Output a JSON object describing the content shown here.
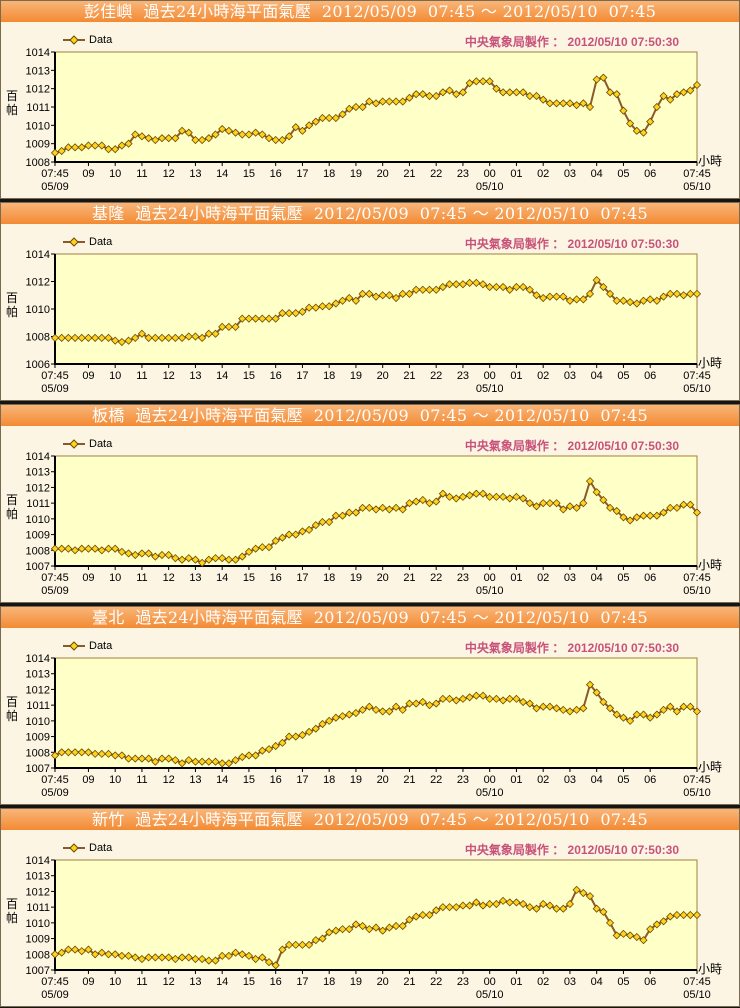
{
  "credit": "中央氣象局製作 ： 2012/05/10 07:50:30",
  "legend_label": "Data",
  "y_unit": "百帕",
  "x_unit": "小時",
  "colors": {
    "header": "#f38a33",
    "plot_bg": "#ffffc8",
    "line": "#8b5a2b",
    "marker": "#ffd21e",
    "credit": "#c8527a"
  },
  "chart_data": [
    {
      "type": "line",
      "title": "彭佳嶼  過去24小時海平面氣壓  2012/05/09  07:45 ～ 2012/05/10  07:45",
      "ylabel": "百帕",
      "xlabel": "小時",
      "ylim": [
        1008,
        1014
      ],
      "yticks": [
        1008,
        1009,
        1010,
        1011,
        1012,
        1013,
        1014
      ],
      "series": [
        {
          "name": "Data",
          "values": [
            1008.5,
            1008.6,
            1008.8,
            1008.8,
            1008.8,
            1008.9,
            1008.9,
            1008.9,
            1008.7,
            1008.7,
            1008.9,
            1009.0,
            1009.5,
            1009.4,
            1009.3,
            1009.2,
            1009.3,
            1009.3,
            1009.3,
            1009.7,
            1009.6,
            1009.2,
            1009.2,
            1009.3,
            1009.5,
            1009.8,
            1009.7,
            1009.6,
            1009.5,
            1009.5,
            1009.6,
            1009.5,
            1009.3,
            1009.2,
            1009.2,
            1009.4,
            1009.9,
            1009.7,
            1010.0,
            1010.2,
            1010.4,
            1010.4,
            1010.4,
            1010.6,
            1010.9,
            1011.0,
            1011.0,
            1011.3,
            1011.2,
            1011.3,
            1011.3,
            1011.3,
            1011.3,
            1011.5,
            1011.7,
            1011.7,
            1011.6,
            1011.6,
            1011.8,
            1011.9,
            1011.7,
            1011.8,
            1012.3,
            1012.4,
            1012.4,
            1012.4,
            1012.0,
            1011.8,
            1011.8,
            1011.8,
            1011.8,
            1011.6,
            1011.6,
            1011.4,
            1011.2,
            1011.2,
            1011.2,
            1011.2,
            1011.1,
            1011.2,
            1011.0,
            1012.5,
            1012.6,
            1011.8,
            1011.7,
            1010.8,
            1010.1,
            1009.7,
            1009.6,
            1010.2,
            1011.0,
            1011.6,
            1011.4,
            1011.7,
            1011.8,
            1011.9,
            1012.2
          ]
        }
      ]
    },
    {
      "type": "line",
      "title": "基隆  過去24小時海平面氣壓  2012/05/09  07:45 ～ 2012/05/10  07:45",
      "ylabel": "百帕",
      "xlabel": "小時",
      "ylim": [
        1006,
        1014
      ],
      "yticks": [
        1006,
        1008,
        1010,
        1012,
        1014
      ],
      "series": [
        {
          "name": "Data",
          "values": [
            1007.9,
            1007.9,
            1007.9,
            1007.9,
            1007.9,
            1007.9,
            1007.9,
            1007.9,
            1007.9,
            1007.7,
            1007.6,
            1007.7,
            1007.9,
            1008.2,
            1007.9,
            1007.9,
            1007.9,
            1007.9,
            1007.9,
            1007.9,
            1008.0,
            1008.0,
            1007.9,
            1008.2,
            1008.2,
            1008.7,
            1008.7,
            1008.7,
            1009.3,
            1009.3,
            1009.3,
            1009.3,
            1009.3,
            1009.3,
            1009.7,
            1009.7,
            1009.7,
            1009.8,
            1010.1,
            1010.1,
            1010.2,
            1010.2,
            1010.4,
            1010.6,
            1010.8,
            1010.6,
            1011.1,
            1011.1,
            1010.9,
            1011.0,
            1011.0,
            1010.8,
            1011.1,
            1011.1,
            1011.4,
            1011.4,
            1011.4,
            1011.4,
            1011.6,
            1011.8,
            1011.8,
            1011.8,
            1011.9,
            1011.9,
            1011.8,
            1011.6,
            1011.6,
            1011.6,
            1011.4,
            1011.6,
            1011.6,
            1011.4,
            1011.0,
            1010.8,
            1010.9,
            1010.9,
            1010.9,
            1010.6,
            1010.7,
            1010.7,
            1011.1,
            1012.1,
            1011.6,
            1011.1,
            1010.6,
            1010.6,
            1010.5,
            1010.4,
            1010.6,
            1010.7,
            1010.6,
            1010.9,
            1011.1,
            1011.1,
            1011.0,
            1011.1,
            1011.1
          ]
        }
      ]
    },
    {
      "type": "line",
      "title": "板橋  過去24小時海平面氣壓  2012/05/09  07:45 ～ 2012/05/10  07:45",
      "ylabel": "百帕",
      "xlabel": "小時",
      "ylim": [
        1007,
        1014
      ],
      "yticks": [
        1007,
        1008,
        1009,
        1010,
        1011,
        1012,
        1013,
        1014
      ],
      "series": [
        {
          "name": "Data",
          "values": [
            1008.1,
            1008.1,
            1008.1,
            1008.0,
            1008.1,
            1008.1,
            1008.1,
            1008.0,
            1008.1,
            1008.1,
            1007.9,
            1007.8,
            1007.7,
            1007.8,
            1007.8,
            1007.6,
            1007.7,
            1007.7,
            1007.5,
            1007.4,
            1007.5,
            1007.4,
            1007.2,
            1007.4,
            1007.5,
            1007.5,
            1007.4,
            1007.4,
            1007.6,
            1007.9,
            1008.1,
            1008.2,
            1008.2,
            1008.6,
            1008.8,
            1009.0,
            1009.0,
            1009.2,
            1009.3,
            1009.6,
            1009.8,
            1009.8,
            1010.2,
            1010.2,
            1010.4,
            1010.4,
            1010.7,
            1010.7,
            1010.6,
            1010.7,
            1010.6,
            1010.7,
            1010.6,
            1011.0,
            1011.1,
            1011.2,
            1011.0,
            1011.1,
            1011.6,
            1011.4,
            1011.3,
            1011.4,
            1011.5,
            1011.6,
            1011.6,
            1011.4,
            1011.4,
            1011.4,
            1011.3,
            1011.4,
            1011.3,
            1011.0,
            1010.8,
            1011.0,
            1011.0,
            1011.0,
            1010.6,
            1010.8,
            1010.7,
            1011.0,
            1012.4,
            1011.7,
            1011.2,
            1010.7,
            1010.5,
            1010.1,
            1009.9,
            1010.1,
            1010.2,
            1010.2,
            1010.2,
            1010.4,
            1010.7,
            1010.7,
            1010.9,
            1010.9,
            1010.4
          ]
        }
      ]
    },
    {
      "type": "line",
      "title": "臺北  過去24小時海平面氣壓  2012/05/09  07:45 ～ 2012/05/10  07:45",
      "ylabel": "百帕",
      "xlabel": "小時",
      "ylim": [
        1007,
        1014
      ],
      "yticks": [
        1007,
        1008,
        1009,
        1010,
        1011,
        1012,
        1013,
        1014
      ],
      "series": [
        {
          "name": "Data",
          "values": [
            1007.8,
            1008.0,
            1008.0,
            1008.0,
            1008.0,
            1008.0,
            1007.9,
            1007.9,
            1007.9,
            1007.8,
            1007.8,
            1007.6,
            1007.6,
            1007.6,
            1007.6,
            1007.4,
            1007.6,
            1007.6,
            1007.5,
            1007.3,
            1007.5,
            1007.4,
            1007.4,
            1007.4,
            1007.4,
            1007.3,
            1007.3,
            1007.5,
            1007.7,
            1007.8,
            1007.8,
            1008.1,
            1008.2,
            1008.4,
            1008.6,
            1009.0,
            1009.0,
            1009.1,
            1009.3,
            1009.5,
            1009.8,
            1010.0,
            1010.2,
            1010.3,
            1010.4,
            1010.5,
            1010.7,
            1010.9,
            1010.7,
            1010.6,
            1010.6,
            1010.9,
            1010.7,
            1011.1,
            1011.1,
            1011.2,
            1011.0,
            1011.1,
            1011.4,
            1011.4,
            1011.3,
            1011.4,
            1011.5,
            1011.6,
            1011.6,
            1011.4,
            1011.4,
            1011.3,
            1011.4,
            1011.4,
            1011.2,
            1011.1,
            1010.8,
            1010.9,
            1010.9,
            1010.8,
            1010.7,
            1010.6,
            1010.7,
            1010.8,
            1012.3,
            1011.8,
            1011.2,
            1010.8,
            1010.4,
            1010.2,
            1010.0,
            1010.4,
            1010.4,
            1010.2,
            1010.4,
            1010.7,
            1010.9,
            1010.6,
            1010.9,
            1010.9,
            1010.6
          ]
        }
      ]
    },
    {
      "type": "line",
      "title": "新竹  過去24小時海平面氣壓  2012/05/09  07:45 ～ 2012/05/10  07:45",
      "ylabel": "百帕",
      "xlabel": "小時",
      "ylim": [
        1007,
        1014
      ],
      "yticks": [
        1007,
        1008,
        1009,
        1010,
        1011,
        1012,
        1013,
        1014
      ],
      "series": [
        {
          "name": "Data",
          "values": [
            1008.0,
            1008.1,
            1008.3,
            1008.3,
            1008.2,
            1008.3,
            1008.0,
            1008.1,
            1008.0,
            1008.0,
            1007.9,
            1007.9,
            1007.8,
            1007.7,
            1007.8,
            1007.8,
            1007.8,
            1007.8,
            1007.7,
            1007.8,
            1007.8,
            1007.7,
            1007.7,
            1007.6,
            1007.6,
            1007.9,
            1007.9,
            1008.1,
            1008.0,
            1007.9,
            1007.7,
            1007.8,
            1007.5,
            1007.3,
            1008.3,
            1008.6,
            1008.6,
            1008.6,
            1008.6,
            1008.9,
            1009.0,
            1009.4,
            1009.5,
            1009.6,
            1009.6,
            1009.9,
            1009.8,
            1009.6,
            1009.7,
            1009.5,
            1009.7,
            1009.8,
            1009.8,
            1010.2,
            1010.4,
            1010.5,
            1010.5,
            1010.8,
            1011.0,
            1011.0,
            1011.0,
            1011.1,
            1011.1,
            1011.3,
            1011.1,
            1011.2,
            1011.2,
            1011.4,
            1011.3,
            1011.3,
            1011.2,
            1011.0,
            1010.9,
            1011.2,
            1011.1,
            1010.9,
            1010.9,
            1011.2,
            1012.1,
            1011.9,
            1011.7,
            1010.9,
            1010.7,
            1010.0,
            1009.2,
            1009.3,
            1009.2,
            1009.1,
            1008.9,
            1009.6,
            1009.9,
            1010.1,
            1010.4,
            1010.5,
            1010.5,
            1010.5,
            1010.5
          ]
        }
      ]
    }
  ],
  "x_axis": {
    "interval_minutes": 15,
    "ticks": [
      {
        "index": 0,
        "label": "07:45",
        "date": "05/09"
      },
      {
        "index": 5,
        "label": "09"
      },
      {
        "index": 9,
        "label": "10"
      },
      {
        "index": 13,
        "label": "11"
      },
      {
        "index": 17,
        "label": "12"
      },
      {
        "index": 21,
        "label": "13"
      },
      {
        "index": 25,
        "label": "14"
      },
      {
        "index": 29,
        "label": "15"
      },
      {
        "index": 33,
        "label": "16"
      },
      {
        "index": 37,
        "label": "17"
      },
      {
        "index": 41,
        "label": "18"
      },
      {
        "index": 45,
        "label": "19"
      },
      {
        "index": 49,
        "label": "20"
      },
      {
        "index": 53,
        "label": "21"
      },
      {
        "index": 57,
        "label": "22"
      },
      {
        "index": 61,
        "label": "23"
      },
      {
        "index": 65,
        "label": "00",
        "date": "05/10"
      },
      {
        "index": 69,
        "label": "01"
      },
      {
        "index": 73,
        "label": "02"
      },
      {
        "index": 77,
        "label": "03"
      },
      {
        "index": 81,
        "label": "04"
      },
      {
        "index": 85,
        "label": "05"
      },
      {
        "index": 89,
        "label": "06"
      },
      {
        "index": 96,
        "label": "07:45",
        "date": "05/10"
      }
    ]
  }
}
